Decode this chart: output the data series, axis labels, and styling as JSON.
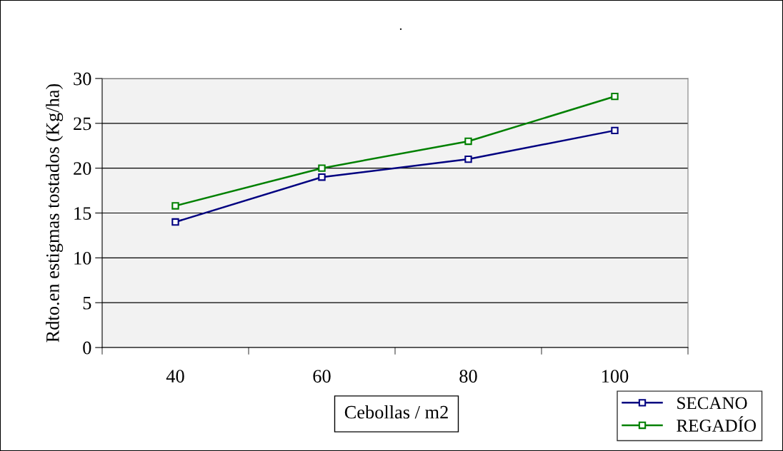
{
  "chart_data": {
    "type": "line",
    "title": ".",
    "xlabel": "Cebollas / m2",
    "ylabel": "Rdto.en estigmas tostados (Kg/ha)",
    "categories": [
      "40",
      "60",
      "80",
      "100"
    ],
    "series": [
      {
        "name": "SECANO",
        "color": "#000080",
        "values": [
          14,
          19,
          21,
          24.2
        ]
      },
      {
        "name": "REGADÍO",
        "color": "#008000",
        "values": [
          15.8,
          20,
          23,
          28
        ]
      }
    ],
    "ylim": [
      0,
      30
    ],
    "yticks": [
      0,
      5,
      10,
      15,
      20,
      25,
      30
    ],
    "grid": "y",
    "legend": "bottom right",
    "marker": "square",
    "line_style": "solid"
  }
}
